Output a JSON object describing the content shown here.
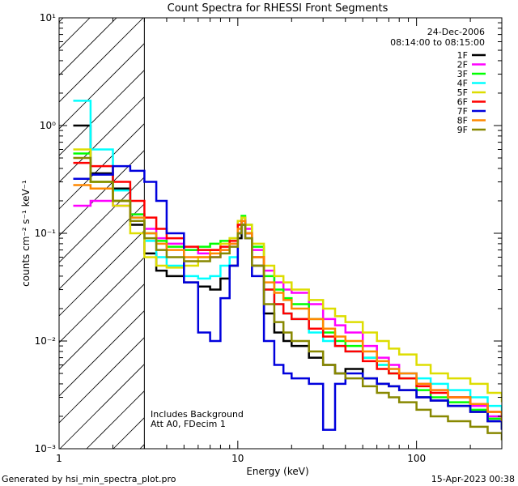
{
  "chart_data": {
    "type": "line",
    "title": "Count Spectra for RHESSI Front Segments",
    "xlabel": "Energy (keV)",
    "ylabel": "counts cm⁻² s⁻¹ keV⁻¹",
    "xscale": "log",
    "yscale": "log",
    "xlim": [
      1,
      300
    ],
    "ylim": [
      0.001,
      10
    ],
    "x_ticks": [
      {
        "value": 1,
        "label": "1"
      },
      {
        "value": 10,
        "label": "10"
      },
      {
        "value": 100,
        "label": "100"
      }
    ],
    "y_ticks": [
      {
        "value": 10,
        "label": "10¹"
      },
      {
        "value": 1,
        "label": "10⁰"
      },
      {
        "value": 0.1,
        "label": "10⁻¹"
      },
      {
        "value": 0.01,
        "label": "10⁻²"
      },
      {
        "value": 0.001,
        "label": "10⁻³"
      }
    ],
    "date": "24-Dec-2006",
    "time_range": "08:14:00 to 08:15:00",
    "annotations": [
      "Includes Background",
      "Att A0, FDecim 1"
    ],
    "hatched_region": [
      1,
      3
    ],
    "legend_position": "top-right",
    "energies": [
      1.2,
      1.5,
      2,
      2.5,
      3,
      3.5,
      4,
      5,
      6,
      7,
      8,
      9,
      10,
      10.5,
      11,
      12,
      14,
      16,
      18,
      20,
      25,
      30,
      35,
      40,
      50,
      60,
      70,
      80,
      100,
      120,
      150,
      200,
      250,
      300
    ],
    "series": [
      {
        "name": "1F",
        "color": "#000000",
        "values": [
          1.0,
          0.36,
          0.26,
          0.12,
          0.065,
          0.045,
          0.04,
          0.035,
          0.032,
          0.03,
          0.038,
          0.05,
          0.09,
          0.12,
          0.1,
          0.05,
          0.018,
          0.012,
          0.01,
          0.009,
          0.007,
          0.006,
          0.005,
          0.0055,
          0.0045,
          0.004,
          0.0038,
          0.0035,
          0.003,
          0.0028,
          0.0025,
          0.0022,
          0.0018,
          0.0015
        ]
      },
      {
        "name": "2F",
        "color": "#ff00ff",
        "values": [
          0.18,
          0.2,
          0.18,
          0.15,
          0.11,
          0.09,
          0.08,
          0.07,
          0.065,
          0.06,
          0.07,
          0.08,
          0.12,
          0.14,
          0.11,
          0.07,
          0.045,
          0.035,
          0.03,
          0.028,
          0.022,
          0.016,
          0.014,
          0.012,
          0.009,
          0.007,
          0.006,
          0.005,
          0.004,
          0.0035,
          0.003,
          0.0025,
          0.002,
          0.0017
        ]
      },
      {
        "name": "3F",
        "color": "#00ff00",
        "values": [
          0.55,
          0.3,
          0.2,
          0.15,
          0.1,
          0.085,
          0.075,
          0.07,
          0.075,
          0.08,
          0.085,
          0.09,
          0.13,
          0.145,
          0.12,
          0.075,
          0.04,
          0.03,
          0.025,
          0.022,
          0.016,
          0.012,
          0.01,
          0.009,
          0.007,
          0.006,
          0.005,
          0.0045,
          0.0035,
          0.003,
          0.0027,
          0.0023,
          0.0019,
          0.0016
        ]
      },
      {
        "name": "4F",
        "color": "#00ffff",
        "values": [
          1.7,
          0.6,
          0.25,
          0.14,
          0.085,
          0.06,
          0.05,
          0.04,
          0.038,
          0.04,
          0.05,
          0.06,
          0.1,
          0.12,
          0.1,
          0.06,
          0.03,
          0.022,
          0.018,
          0.016,
          0.012,
          0.01,
          0.009,
          0.008,
          0.007,
          0.006,
          0.0055,
          0.005,
          0.0045,
          0.004,
          0.0035,
          0.003,
          0.0025,
          0.002
        ]
      },
      {
        "name": "5F",
        "color": "#dddd00",
        "values": [
          0.6,
          0.3,
          0.18,
          0.1,
          0.06,
          0.05,
          0.048,
          0.05,
          0.06,
          0.07,
          0.08,
          0.09,
          0.13,
          0.14,
          0.12,
          0.08,
          0.05,
          0.04,
          0.035,
          0.03,
          0.024,
          0.02,
          0.017,
          0.015,
          0.012,
          0.01,
          0.0085,
          0.0075,
          0.006,
          0.005,
          0.0045,
          0.004,
          0.0033,
          0.0027
        ]
      },
      {
        "name": "6F",
        "color": "#ff0000",
        "values": [
          0.45,
          0.42,
          0.3,
          0.2,
          0.14,
          0.11,
          0.09,
          0.075,
          0.07,
          0.07,
          0.075,
          0.085,
          0.12,
          0.13,
          0.1,
          0.06,
          0.03,
          0.022,
          0.018,
          0.016,
          0.013,
          0.011,
          0.009,
          0.008,
          0.0065,
          0.0055,
          0.005,
          0.0045,
          0.0038,
          0.0033,
          0.003,
          0.0026,
          0.0022,
          0.0018
        ]
      },
      {
        "name": "7F",
        "color": "#0000dd",
        "values": [
          0.32,
          0.35,
          0.42,
          0.38,
          0.3,
          0.2,
          0.1,
          0.035,
          0.012,
          0.01,
          0.025,
          0.05,
          0.1,
          0.13,
          0.09,
          0.04,
          0.01,
          0.006,
          0.005,
          0.0045,
          0.004,
          0.0015,
          0.004,
          0.005,
          0.0045,
          0.004,
          0.0038,
          0.0035,
          0.003,
          0.0028,
          0.0025,
          0.0022,
          0.0018,
          0.0015
        ]
      },
      {
        "name": "8F",
        "color": "#ff8800",
        "values": [
          0.28,
          0.26,
          0.2,
          0.14,
          0.1,
          0.08,
          0.07,
          0.06,
          0.06,
          0.065,
          0.07,
          0.08,
          0.11,
          0.13,
          0.1,
          0.06,
          0.035,
          0.028,
          0.024,
          0.02,
          0.016,
          0.013,
          0.011,
          0.01,
          0.008,
          0.0065,
          0.0055,
          0.005,
          0.004,
          0.0035,
          0.003,
          0.0026,
          0.0022,
          0.0018
        ]
      },
      {
        "name": "9F",
        "color": "#888800",
        "values": [
          0.5,
          0.3,
          0.2,
          0.13,
          0.09,
          0.07,
          0.06,
          0.055,
          0.055,
          0.06,
          0.065,
          0.075,
          0.1,
          0.12,
          0.09,
          0.05,
          0.022,
          0.015,
          0.012,
          0.01,
          0.008,
          0.006,
          0.005,
          0.0045,
          0.0038,
          0.0033,
          0.003,
          0.0027,
          0.0023,
          0.002,
          0.0018,
          0.0016,
          0.0014,
          0.0012
        ]
      }
    ]
  },
  "footer": {
    "generated_by": "Generated by hsi_min_spectra_plot.pro",
    "timestamp": "15-Apr-2023 00:38"
  }
}
